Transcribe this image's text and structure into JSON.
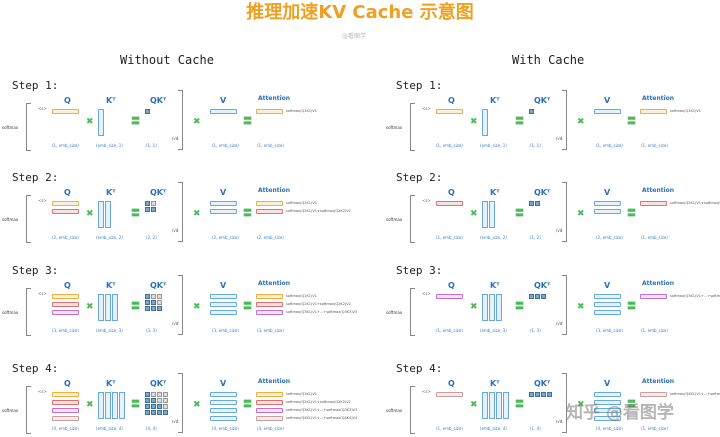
{
  "title": "推理加速KV Cache 示意图",
  "watermark_top": "@看图学",
  "watermark_bottom": "知乎 @看图学",
  "labels": {
    "q": "Q",
    "kt": "Kᵀ",
    "qkt": "QKᵀ",
    "v": "V",
    "attention": "Attention",
    "softmax": "softmax",
    "multiply": "✖",
    "equals": "〓",
    "start_token": "<s>",
    "scale": "/√d"
  },
  "colors": {
    "q_rows": [
      "#f0b040",
      "#e07070",
      "#c070d0",
      "#c8a0a0"
    ],
    "v": "#6aa8d8",
    "accent_title": "#f0a020",
    "op": "#4cba5a"
  },
  "panels": [
    {
      "title": "Without Cache",
      "steps": [
        {
          "label": "Step 1:",
          "q_rows": 1,
          "k_cols": 1,
          "qk": [
            1,
            1
          ],
          "v_rows": 1,
          "att_rows": 1,
          "dims": [
            "(1, emb_size)",
            "(emb_size, 1)",
            "(1, 1)",
            "(1, emb_size)",
            "(1, emb_size)"
          ],
          "formulas": [
            "softmax(Q1K1)V1"
          ]
        },
        {
          "label": "Step 2:",
          "q_rows": 2,
          "k_cols": 2,
          "qk": [
            2,
            2
          ],
          "v_rows": 2,
          "att_rows": 2,
          "dims": [
            "(2, emb_size)",
            "(emb_size, 2)",
            "(2, 2)",
            "(2, emb_size)",
            "(2, emb_size)"
          ],
          "formulas": [
            "softmax(Q1K1)V1",
            "softmax(Q2K1)V1+softmax(Q2K2)V2"
          ]
        },
        {
          "label": "Step 3:",
          "q_rows": 3,
          "k_cols": 3,
          "qk": [
            3,
            3
          ],
          "v_rows": 3,
          "att_rows": 3,
          "dims": [
            "(3, emb_size)",
            "(emb_size, 3)",
            "(3, 3)",
            "(3, emb_size)",
            "(3, emb_size)"
          ],
          "formulas": [
            "softmax(Q1K1)V1",
            "softmax(Q2K1)V1+softmax(Q2K2)V2",
            "softmax(Q3K1)V1+...+softmax(Q3K3)V3"
          ]
        },
        {
          "label": "Step 4:",
          "q_rows": 4,
          "k_cols": 4,
          "qk": [
            4,
            4
          ],
          "v_rows": 4,
          "att_rows": 4,
          "dims": [
            "(4, emb_size)",
            "(emb_size, 4)",
            "(4, 4)",
            "(4, emb_size)",
            "(4, emb_size)"
          ],
          "formulas": [
            "softmax(Q1K1)V1",
            "softmax(Q2K1)V1+softmax(Q2K2)V2",
            "softmax(Q3K1)V1+...+softmax(Q3K3)V3",
            "softmax(Q4K1)V1+...+softmax(Q4K4)V4"
          ]
        }
      ]
    },
    {
      "title": "With Cache",
      "steps": [
        {
          "label": "Step 1:",
          "q_rows": 1,
          "k_cols": 1,
          "qk": [
            1,
            1
          ],
          "v_rows": 1,
          "att_rows": 1,
          "dims": [
            "(1, emb_size)",
            "(emb_size, 1)",
            "(1, 1)",
            "(1, emb_size)",
            "(1, emb_size)"
          ],
          "formulas": [
            "softmax(Q1K1)V1"
          ]
        },
        {
          "label": "Step 2:",
          "q_rows": 1,
          "k_cols": 2,
          "qk": [
            1,
            2
          ],
          "v_rows": 2,
          "att_rows": 1,
          "dims": [
            "(1, emb_size)",
            "(emb_size, 2)",
            "(1, 2)",
            "(2, emb_size)",
            "(1, emb_size)"
          ],
          "formulas": [
            "softmax(Q2K1)V1+softmax(Q2K2)V2"
          ]
        },
        {
          "label": "Step 3:",
          "q_rows": 1,
          "k_cols": 3,
          "qk": [
            1,
            3
          ],
          "v_rows": 3,
          "att_rows": 1,
          "dims": [
            "(1, emb_size)",
            "(emb_size, 3)",
            "(1, 3)",
            "(3, emb_size)",
            "(1, emb_size)"
          ],
          "formulas": [
            "softmax(Q3K1)V1+...+softmax(Q3K3)V3"
          ]
        },
        {
          "label": "Step 4:",
          "q_rows": 1,
          "k_cols": 4,
          "qk": [
            1,
            4
          ],
          "v_rows": 4,
          "att_rows": 1,
          "dims": [
            "(1, emb_size)",
            "(emb_size, 4)",
            "(1, 4)",
            "(4, emb_size)",
            "(1, emb_size)"
          ],
          "formulas": [
            "softmax(Q4K1)V1+...+softmax(Q4K4)V4"
          ]
        }
      ]
    }
  ]
}
